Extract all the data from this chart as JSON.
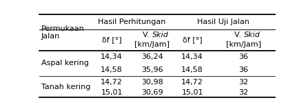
{
  "title_col1": "Permukaan\nJalan",
  "header_group1": "Hasil Perhitungan",
  "header_group2": "Hasil Uji Jalan",
  "col_headers_plain": [
    "δf [°]",
    "δf [°]"
  ],
  "col_headers_skid_top": "V. Skid",
  "col_headers_skid_bot": "[km/Jam]",
  "row_groups": [
    {
      "label": "Aspal kering",
      "rows": [
        [
          "14,34",
          "36,24",
          "14,34",
          "36"
        ],
        [
          "14,58",
          "35,96",
          "14,58",
          "36"
        ]
      ]
    },
    {
      "label": "Tanah kering",
      "rows": [
        [
          "14,72",
          "30,98",
          "14,72",
          "32"
        ],
        [
          "15,01",
          "30,69",
          "15,01",
          "32"
        ]
      ]
    }
  ],
  "figsize": [
    4.44,
    1.62
  ],
  "dpi": 100,
  "font_size": 8.0
}
